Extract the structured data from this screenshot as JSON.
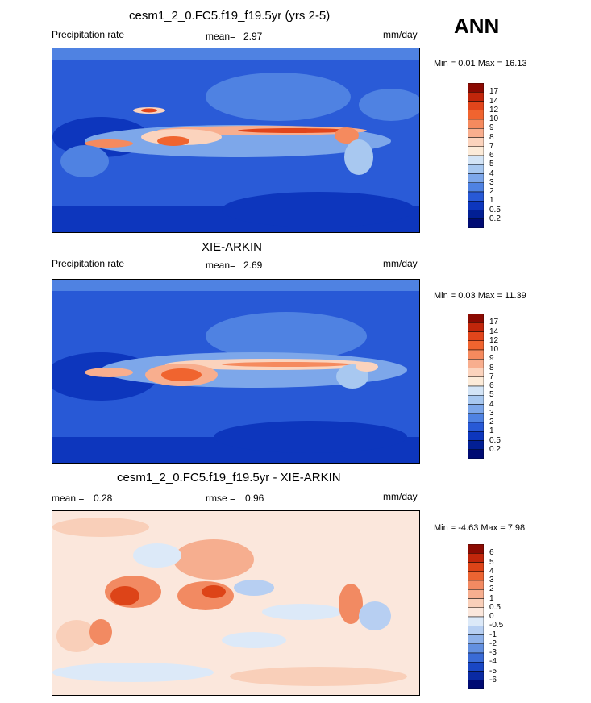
{
  "season": "ANN",
  "units": "mm/day",
  "panels": [
    {
      "title": "cesm1_2_0.FC5.f19_f19.5yr (yrs 2-5)",
      "left_label": "Precipitation rate",
      "stat_label": "mean=",
      "stat_value": "2.97",
      "right_label": "mm/day",
      "minmax": "Min =   0.01 Max =  16.13",
      "colorbar": "precip"
    },
    {
      "title": "XIE-ARKIN",
      "left_label": "Precipitation rate",
      "stat_label": "mean=",
      "stat_value": "2.69",
      "right_label": "mm/day",
      "minmax": "Min =   0.03 Max =  11.39",
      "colorbar": "precip"
    },
    {
      "title": "cesm1_2_0.FC5.f19_f19.5yr - XIE-ARKIN",
      "left_label": "mean =",
      "left_value": "0.28",
      "stat_label": "rmse =",
      "stat_value": "0.96",
      "right_label": "mm/day",
      "minmax": "Min =  -4.63 Max =   7.98",
      "colorbar": "diff"
    }
  ],
  "chart_data": [
    {
      "type": "heatmap",
      "title": "cesm1_2_0.FC5.f19_f19.5yr (yrs 2-5)",
      "variable": "Precipitation rate",
      "units": "mm/day",
      "mean": 2.97,
      "min": 0.01,
      "max": 16.13,
      "colorbar_levels": [
        "17",
        "14",
        "12",
        "10",
        "9",
        "8",
        "7",
        "6",
        "5",
        "4",
        "3",
        "2",
        "1",
        "0.5",
        "0.2"
      ],
      "colorbar_colors": [
        "#8b0a02",
        "#c1260b",
        "#e1451b",
        "#f0642f",
        "#f58a5e",
        "#f8ae8e",
        "#fbd3bd",
        "#fcebd9",
        "#d3e4f6",
        "#a8c8f0",
        "#7da7ea",
        "#4f82e2",
        "#2859d6",
        "#0d36bd",
        "#021f94",
        "#000b73"
      ]
    },
    {
      "type": "heatmap",
      "title": "XIE-ARKIN",
      "variable": "Precipitation rate",
      "units": "mm/day",
      "mean": 2.69,
      "min": 0.03,
      "max": 11.39,
      "colorbar_levels": [
        "17",
        "14",
        "12",
        "10",
        "9",
        "8",
        "7",
        "6",
        "5",
        "4",
        "3",
        "2",
        "1",
        "0.5",
        "0.2"
      ],
      "colorbar_colors": [
        "#8b0a02",
        "#c1260b",
        "#e1451b",
        "#f0642f",
        "#f58a5e",
        "#f8ae8e",
        "#fbd3bd",
        "#fcebd9",
        "#d3e4f6",
        "#a8c8f0",
        "#7da7ea",
        "#4f82e2",
        "#2859d6",
        "#0d36bd",
        "#021f94",
        "#000b73"
      ]
    },
    {
      "type": "heatmap",
      "title": "cesm1_2_0.FC5.f19_f19.5yr - XIE-ARKIN",
      "units": "mm/day",
      "mean": 0.28,
      "rmse": 0.96,
      "min": -4.63,
      "max": 7.98,
      "colorbar_levels": [
        "6",
        "5",
        "4",
        "3",
        "2",
        "1",
        "0.5",
        "0",
        "-0.5",
        "-1",
        "-2",
        "-3",
        "-4",
        "-5",
        "-6"
      ],
      "colorbar_colors": [
        "#8b0a02",
        "#c1260b",
        "#dd4418",
        "#ec6432",
        "#f28a62",
        "#f6ae8f",
        "#f9cfb9",
        "#fbe7dc",
        "#dce9f8",
        "#b7cff2",
        "#8fb2ea",
        "#6390e0",
        "#3a6bd6",
        "#1a47c4",
        "#0a2aa3",
        "#000b73"
      ]
    }
  ]
}
